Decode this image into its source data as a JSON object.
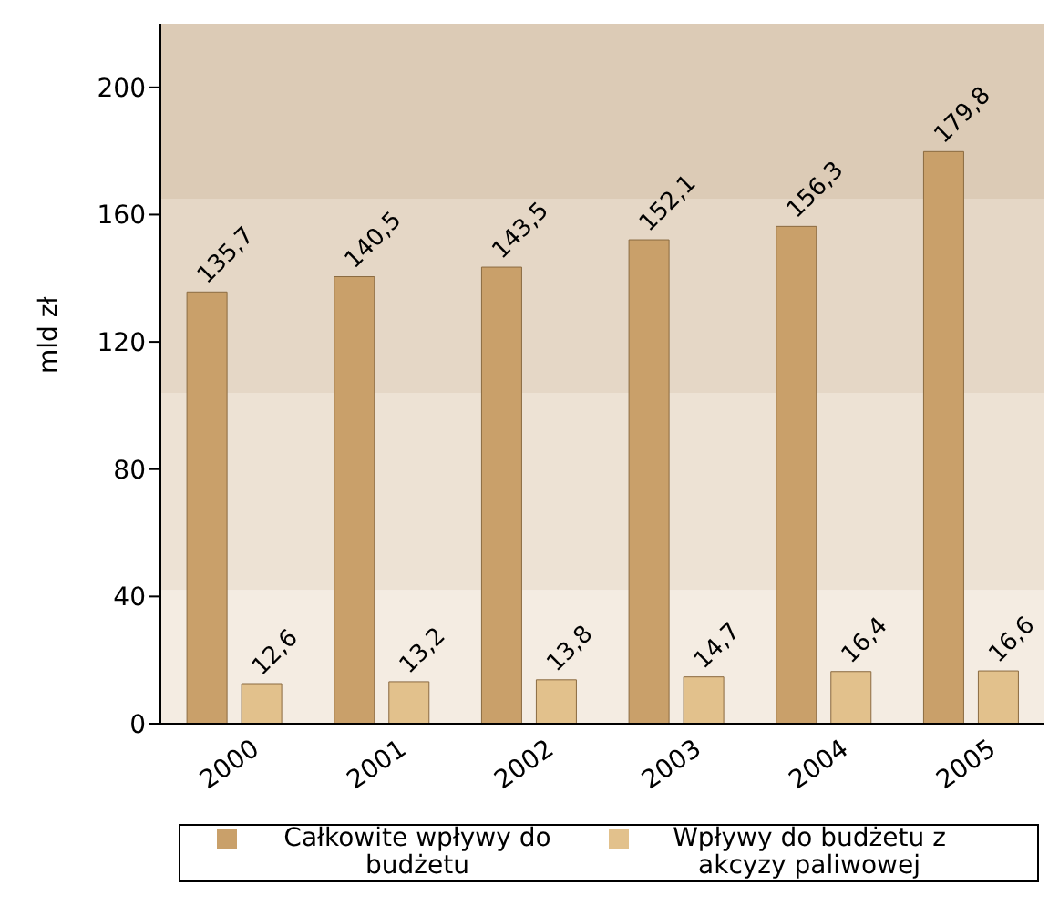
{
  "chart_data": {
    "type": "bar",
    "ylabel": "mld zł",
    "categories": [
      "2000",
      "2001",
      "2002",
      "2003",
      "2004",
      "2005"
    ],
    "series": [
      {
        "name": "Całkowite wpływy do budżetu",
        "color": "#c9a06a",
        "values": [
          135.7,
          140.5,
          143.5,
          152.1,
          156.3,
          179.8
        ],
        "value_labels": [
          "135,7",
          "140,5",
          "143,5",
          "152,1",
          "156,3",
          "179,8"
        ]
      },
      {
        "name": "Wpływy do budżetu z akcyzy paliwowej",
        "color": "#e2c18c",
        "values": [
          12.6,
          13.2,
          13.8,
          14.7,
          16.4,
          16.6
        ],
        "value_labels": [
          "12,6",
          "13,2",
          "13,8",
          "14,7",
          "16,4",
          "16,6"
        ]
      }
    ],
    "ylim": [
      0,
      220
    ],
    "yticks": [
      0,
      40,
      80,
      120,
      160,
      200
    ],
    "grid": false,
    "legend": "bottom",
    "bands": [
      {
        "axis": "y",
        "from": 0,
        "to": 42,
        "color": "#f4ece2"
      },
      {
        "axis": "y",
        "from": 42,
        "to": 104,
        "color": "#ede2d4"
      },
      {
        "axis": "y",
        "from": 104,
        "to": 165,
        "color": "#e5d7c6"
      },
      {
        "axis": "y",
        "from": 165,
        "to": 220,
        "color": "#dccbb6"
      }
    ]
  }
}
